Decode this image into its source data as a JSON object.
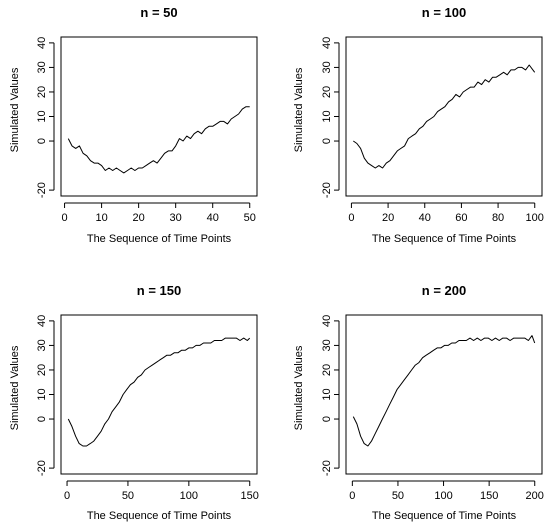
{
  "chart_data": [
    {
      "type": "line",
      "title": "n = 50",
      "xlabel": "The Sequence of Time Points",
      "ylabel": "Simulated Values",
      "xlim": [
        1,
        50
      ],
      "ylim": [
        -20,
        40
      ],
      "xticks": [
        0,
        10,
        20,
        30,
        40,
        50
      ],
      "yticks": [
        -20,
        0,
        10,
        20,
        30,
        40
      ],
      "grid": false,
      "series": [
        {
          "x": [
            1,
            2,
            3,
            4,
            5,
            6,
            7,
            8,
            9,
            10,
            11,
            12,
            13,
            14,
            15,
            16,
            17,
            18,
            19,
            20,
            21,
            22,
            23,
            24,
            25,
            26,
            27,
            28,
            29,
            30,
            31,
            32,
            33,
            34,
            35,
            36,
            37,
            38,
            39,
            40,
            41,
            42,
            43,
            44,
            45,
            46,
            47,
            48,
            49,
            50
          ],
          "values": [
            1,
            -2,
            -3,
            -2,
            -5,
            -6,
            -8,
            -9,
            -9,
            -10,
            -12,
            -11,
            -12,
            -11,
            -12,
            -13,
            -12,
            -11,
            -12,
            -11,
            -11,
            -10,
            -9,
            -8,
            -9,
            -7,
            -5,
            -4,
            -4,
            -2,
            1,
            0,
            2,
            1,
            3,
            4,
            3,
            5,
            6,
            6,
            7,
            8,
            8,
            7,
            9,
            10,
            11,
            13,
            14,
            14
          ]
        }
      ]
    },
    {
      "type": "line",
      "title": "n = 100",
      "xlabel": "The Sequence of Time Points",
      "ylabel": "Simulated Values",
      "xlim": [
        1,
        100
      ],
      "ylim": [
        -20,
        40
      ],
      "xticks": [
        0,
        20,
        40,
        60,
        80,
        100
      ],
      "yticks": [
        -20,
        0,
        10,
        20,
        30,
        40
      ],
      "grid": false,
      "series": [
        {
          "x": [
            1,
            3,
            5,
            7,
            9,
            11,
            13,
            15,
            17,
            19,
            21,
            23,
            25,
            27,
            29,
            31,
            33,
            35,
            37,
            39,
            41,
            43,
            45,
            47,
            49,
            51,
            53,
            55,
            57,
            59,
            61,
            63,
            65,
            67,
            69,
            71,
            73,
            75,
            77,
            79,
            81,
            83,
            85,
            87,
            89,
            91,
            93,
            95,
            97,
            99,
            100
          ],
          "values": [
            0,
            -1,
            -3,
            -7,
            -9,
            -10,
            -11,
            -10,
            -11,
            -9,
            -8,
            -6,
            -4,
            -3,
            -2,
            1,
            2,
            3,
            5,
            6,
            8,
            9,
            10,
            12,
            13,
            14,
            16,
            17,
            19,
            18,
            20,
            21,
            22,
            22,
            24,
            23,
            25,
            24,
            26,
            26,
            27,
            28,
            27,
            29,
            29,
            30,
            30,
            29,
            31,
            29,
            28
          ]
        }
      ]
    },
    {
      "type": "line",
      "title": "n = 150",
      "xlabel": "The Sequence of Time Points",
      "ylabel": "Simulated Values",
      "xlim": [
        1,
        150
      ],
      "ylim": [
        -20,
        40
      ],
      "xticks": [
        0,
        50,
        100,
        150
      ],
      "yticks": [
        -20,
        0,
        10,
        20,
        30,
        40
      ],
      "grid": false,
      "series": [
        {
          "x": [
            1,
            4,
            7,
            10,
            13,
            16,
            19,
            22,
            25,
            28,
            31,
            34,
            37,
            40,
            43,
            46,
            49,
            52,
            55,
            58,
            61,
            64,
            67,
            70,
            73,
            76,
            79,
            82,
            85,
            88,
            91,
            94,
            97,
            100,
            103,
            106,
            109,
            112,
            115,
            118,
            121,
            124,
            127,
            130,
            133,
            136,
            139,
            142,
            145,
            148,
            150
          ],
          "values": [
            0,
            -3,
            -7,
            -10,
            -11,
            -11,
            -10,
            -9,
            -7,
            -5,
            -2,
            0,
            3,
            5,
            7,
            10,
            12,
            14,
            15,
            17,
            18,
            20,
            21,
            22,
            23,
            24,
            25,
            26,
            26,
            27,
            27,
            28,
            28,
            29,
            29,
            30,
            30,
            31,
            31,
            31,
            32,
            32,
            32,
            33,
            33,
            33,
            33,
            32,
            33,
            32,
            33
          ]
        }
      ]
    },
    {
      "type": "line",
      "title": "n = 200",
      "xlabel": "The Sequence of Time Points",
      "ylabel": "Simulated Values",
      "xlim": [
        1,
        200
      ],
      "ylim": [
        -20,
        40
      ],
      "xticks": [
        0,
        50,
        100,
        150,
        200
      ],
      "yticks": [
        -20,
        0,
        10,
        20,
        30,
        40
      ],
      "grid": false,
      "series": [
        {
          "x": [
            1,
            5,
            9,
            13,
            17,
            21,
            25,
            29,
            33,
            37,
            41,
            45,
            49,
            53,
            57,
            61,
            65,
            69,
            73,
            77,
            81,
            85,
            89,
            93,
            97,
            101,
            105,
            109,
            113,
            117,
            121,
            125,
            129,
            133,
            137,
            141,
            145,
            149,
            153,
            157,
            161,
            165,
            169,
            173,
            177,
            181,
            185,
            189,
            193,
            197,
            200
          ],
          "values": [
            1,
            -2,
            -7,
            -10,
            -11,
            -9,
            -6,
            -3,
            0,
            3,
            6,
            9,
            12,
            14,
            16,
            18,
            20,
            22,
            23,
            25,
            26,
            27,
            28,
            29,
            29,
            30,
            30,
            31,
            31,
            32,
            32,
            32,
            33,
            32,
            33,
            32,
            33,
            33,
            32,
            33,
            32,
            33,
            33,
            32,
            33,
            33,
            33,
            33,
            32,
            34,
            31
          ]
        }
      ]
    }
  ]
}
